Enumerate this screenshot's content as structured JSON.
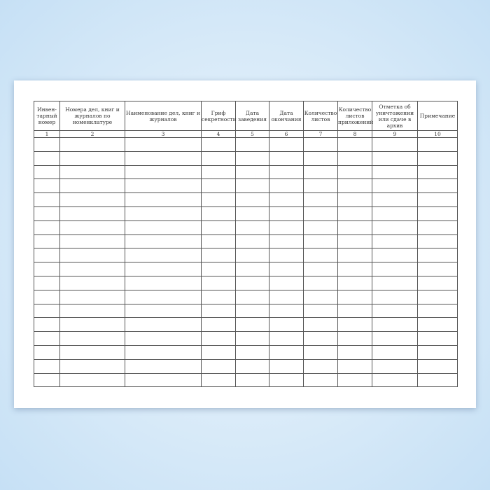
{
  "columns": [
    {
      "header": "Инвен-тарный номер",
      "num": "1"
    },
    {
      "header": "Номера дел, книг и журналов по номенклатуре",
      "num": "2"
    },
    {
      "header": "Наименование дел, книг и журналов",
      "num": "3"
    },
    {
      "header": "Гриф секретности",
      "num": "4"
    },
    {
      "header": "Дата заведения",
      "num": "5"
    },
    {
      "header": "Дата окончания",
      "num": "6"
    },
    {
      "header": "Количество листов",
      "num": "7"
    },
    {
      "header": "Количество листов приложений",
      "num": "8"
    },
    {
      "header": "Отметка об уничтожении или сдаче в архив",
      "num": "9"
    },
    {
      "header": "Примечание",
      "num": "10"
    }
  ],
  "empty_rows": 18
}
